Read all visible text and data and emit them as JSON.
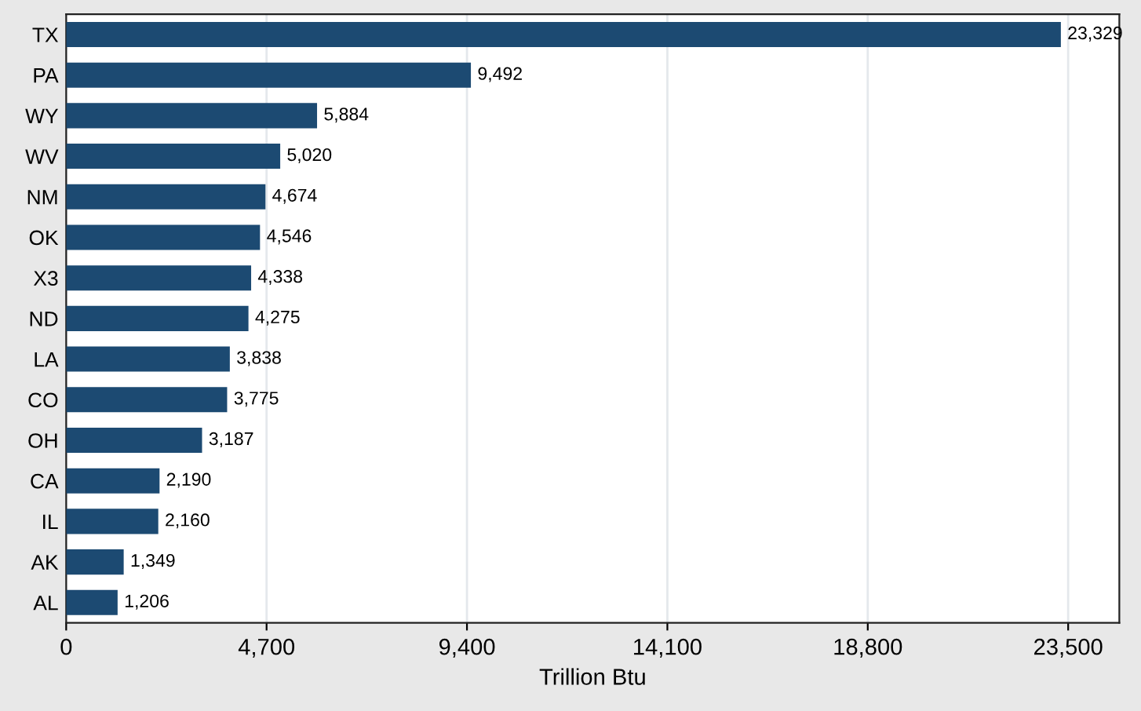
{
  "chart_data": {
    "type": "bar",
    "orientation": "horizontal",
    "xlabel": "Trillion Btu",
    "categories": [
      "TX",
      "PA",
      "WY",
      "WV",
      "NM",
      "OK",
      "X3",
      "ND",
      "LA",
      "CO",
      "OH",
      "CA",
      "IL",
      "AK",
      "AL"
    ],
    "values": [
      23329,
      9492,
      5884,
      5020,
      4674,
      4546,
      4338,
      4275,
      3838,
      3775,
      3187,
      2190,
      2160,
      1349,
      1206
    ],
    "color": "#1c4a72",
    "value_labels": [
      "23,329",
      "9,492",
      "5,884",
      "5,020",
      "4,674",
      "4,546",
      "4,338",
      "4,275",
      "3,838",
      "3,775",
      "3,187",
      "2,190",
      "2,160",
      "1,349",
      "1,206"
    ],
    "xlim": [
      0,
      24700
    ],
    "xticks": [
      0,
      {
        "value": 4700,
        "label": "4,700"
      },
      {
        "value": 9400,
        "label": "9,400"
      },
      {
        "value": 14100,
        "label": "14,100"
      },
      {
        "value": 18800,
        "label": "18,800"
      },
      {
        "value": 23500,
        "label": "23,500"
      }
    ],
    "grid": "x"
  }
}
